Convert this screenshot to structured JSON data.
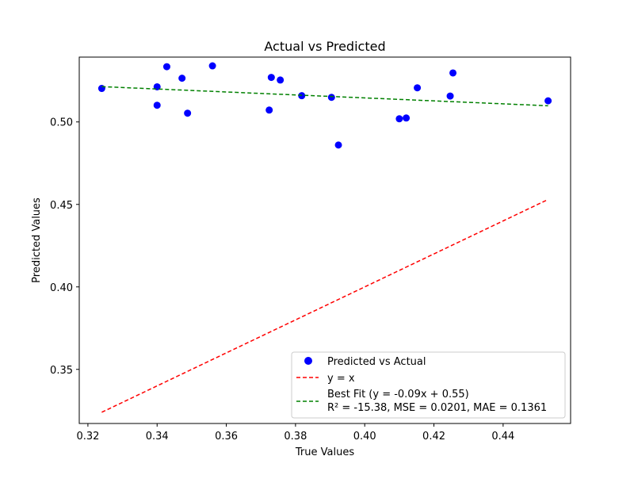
{
  "chart_data": {
    "type": "scatter",
    "title": "Actual vs Predicted",
    "xlabel": "True Values",
    "ylabel": "Predicted Values",
    "xlim": [
      0.3175,
      0.4595
    ],
    "ylim": [
      0.3172,
      0.5393
    ],
    "xticks": [
      0.32,
      0.34,
      0.36,
      0.38,
      0.4,
      0.42,
      0.44
    ],
    "xtick_labels": [
      "0.32",
      "0.34",
      "0.36",
      "0.38",
      "0.40",
      "0.42",
      "0.44"
    ],
    "yticks": [
      0.35,
      0.4,
      0.45,
      0.5
    ],
    "ytick_labels": [
      "0.35",
      "0.40",
      "0.45",
      "0.50"
    ],
    "grid": false,
    "legend_position": "lower-right",
    "series": [
      {
        "name": "Predicted vs Actual",
        "kind": "scatter",
        "color": "#0000ff",
        "x": [
          0.324,
          0.34,
          0.34,
          0.3428,
          0.3472,
          0.3488,
          0.356,
          0.3724,
          0.373,
          0.3756,
          0.3818,
          0.3904,
          0.3924,
          0.41,
          0.412,
          0.4152,
          0.4247,
          0.4255,
          0.453
        ],
        "y": [
          0.5203,
          0.5213,
          0.5101,
          0.5335,
          0.5265,
          0.5053,
          0.534,
          0.5072,
          0.527,
          0.5254,
          0.5159,
          0.5149,
          0.486,
          0.5019,
          0.5024,
          0.5207,
          0.5157,
          0.5297,
          0.5128
        ]
      },
      {
        "name": "y = x",
        "kind": "line",
        "style": "dashed",
        "color": "#ff0000",
        "x": [
          0.324,
          0.453
        ],
        "y": [
          0.324,
          0.453
        ]
      },
      {
        "name": "Best Fit (y = -0.09x + 0.55)",
        "name_line2": "R² = -15.38, MSE = 0.0201, MAE = 0.1361",
        "kind": "line",
        "style": "dashed",
        "color": "#008000",
        "x": [
          0.324,
          0.453
        ],
        "y": [
          0.5214,
          0.5098
        ]
      }
    ]
  }
}
